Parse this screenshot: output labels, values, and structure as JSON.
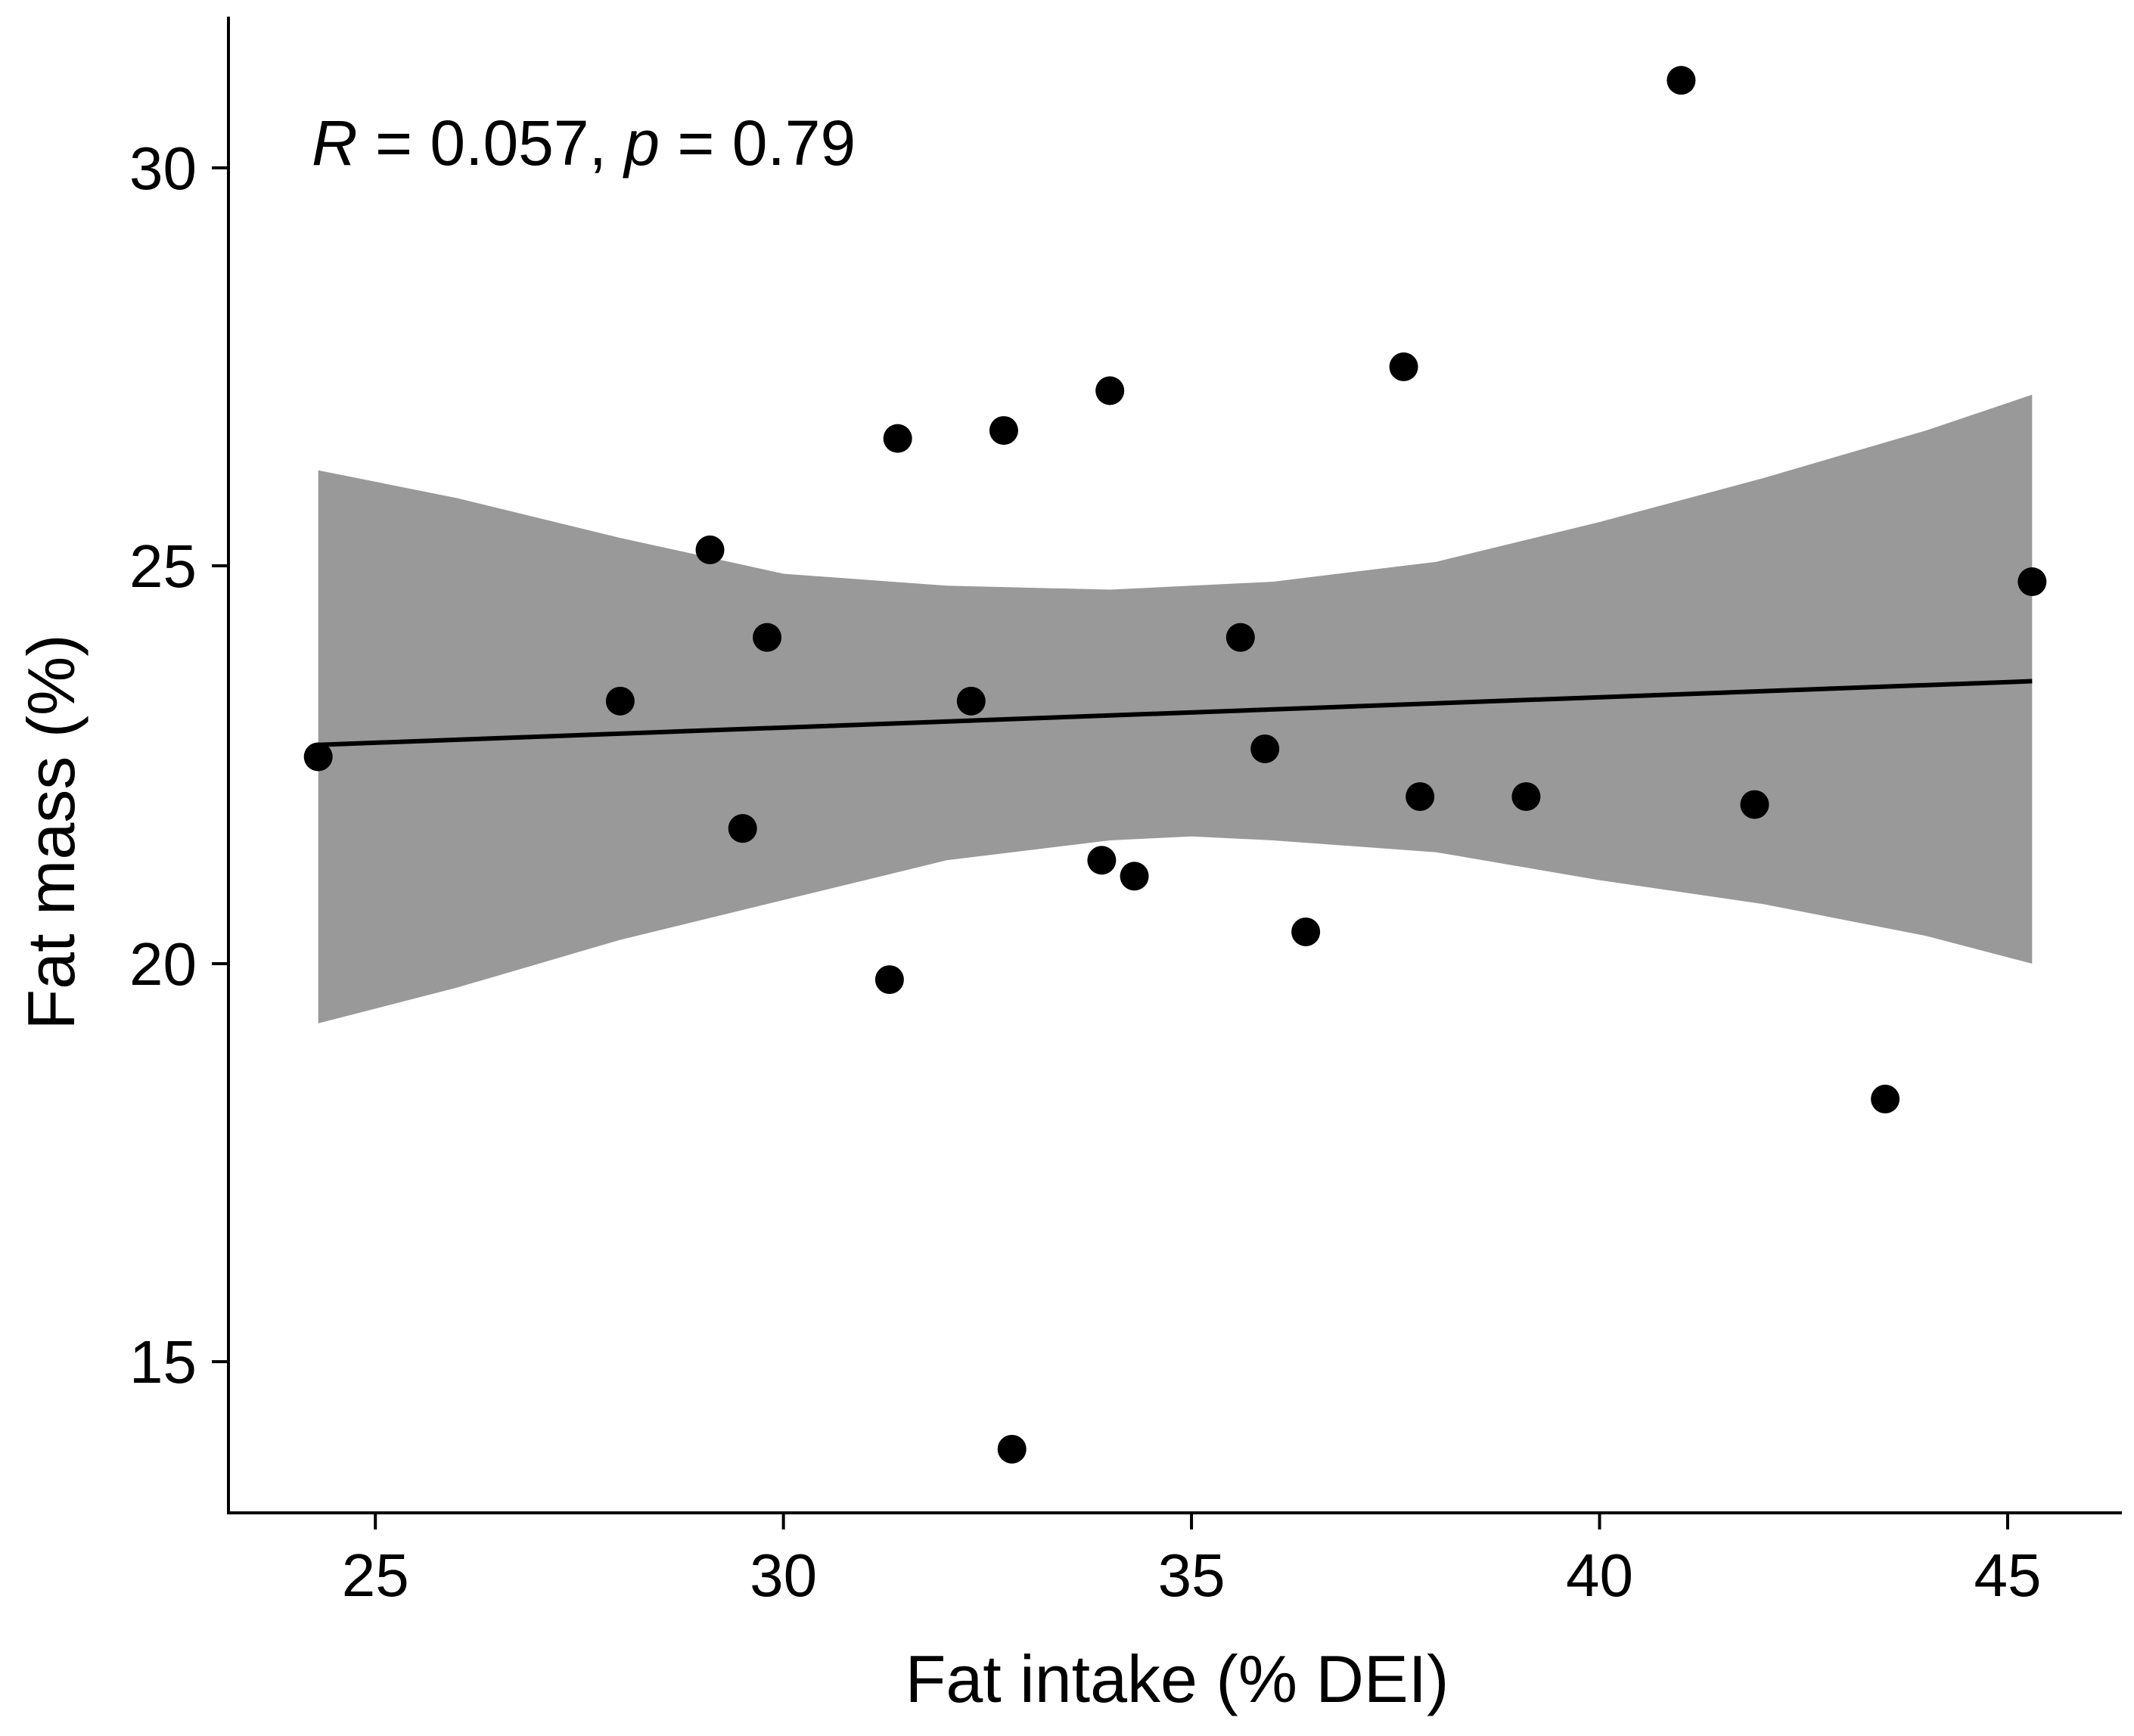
{
  "chart_data": {
    "type": "scatter",
    "title": "",
    "xlabel": "Fat intake (% DEI)",
    "ylabel": "Fat mass (%)",
    "xlim": [
      23.2,
      46.4
    ],
    "ylim": [
      13.1,
      31.9
    ],
    "x_ticks": [
      25,
      30,
      35,
      40,
      45
    ],
    "y_ticks": [
      15,
      20,
      25,
      30
    ],
    "annotation": {
      "r_symbol": "R",
      "r_text": " = 0.057, ",
      "p_symbol": "p",
      "p_text": " = 0.79"
    },
    "points": [
      {
        "x": 24.3,
        "y": 22.6
      },
      {
        "x": 28.0,
        "y": 23.3
      },
      {
        "x": 29.1,
        "y": 25.2
      },
      {
        "x": 29.5,
        "y": 21.7
      },
      {
        "x": 29.8,
        "y": 24.1
      },
      {
        "x": 31.3,
        "y": 19.8
      },
      {
        "x": 31.4,
        "y": 26.6
      },
      {
        "x": 32.3,
        "y": 23.3
      },
      {
        "x": 32.7,
        "y": 26.7
      },
      {
        "x": 32.8,
        "y": 13.9
      },
      {
        "x": 33.9,
        "y": 21.3
      },
      {
        "x": 34.0,
        "y": 27.2
      },
      {
        "x": 34.3,
        "y": 21.1
      },
      {
        "x": 35.6,
        "y": 24.1
      },
      {
        "x": 35.9,
        "y": 22.7
      },
      {
        "x": 36.4,
        "y": 20.4
      },
      {
        "x": 37.6,
        "y": 27.5
      },
      {
        "x": 37.8,
        "y": 22.1
      },
      {
        "x": 39.1,
        "y": 22.1
      },
      {
        "x": 41.0,
        "y": 31.1
      },
      {
        "x": 41.9,
        "y": 22.0
      },
      {
        "x": 43.5,
        "y": 18.3
      },
      {
        "x": 45.3,
        "y": 24.8
      }
    ],
    "regression_line": [
      {
        "x": 24.3,
        "y": 22.75
      },
      {
        "x": 45.3,
        "y": 23.55
      }
    ],
    "confidence_band": {
      "x": [
        24.3,
        26.0,
        28.0,
        30.0,
        32.0,
        34.0,
        35.0,
        36.0,
        38.0,
        40.0,
        42.0,
        44.0,
        45.3
      ],
      "upper": [
        26.2,
        25.85,
        25.35,
        24.9,
        24.75,
        24.7,
        24.75,
        24.8,
        25.05,
        25.55,
        26.1,
        26.7,
        27.15
      ],
      "lower": [
        19.25,
        19.7,
        20.3,
        20.8,
        21.3,
        21.55,
        21.6,
        21.55,
        21.4,
        21.05,
        20.75,
        20.35,
        20.0
      ]
    },
    "colors": {
      "points": "#000000",
      "band": "#999999",
      "line": "#000000",
      "axis": "#000000"
    }
  }
}
